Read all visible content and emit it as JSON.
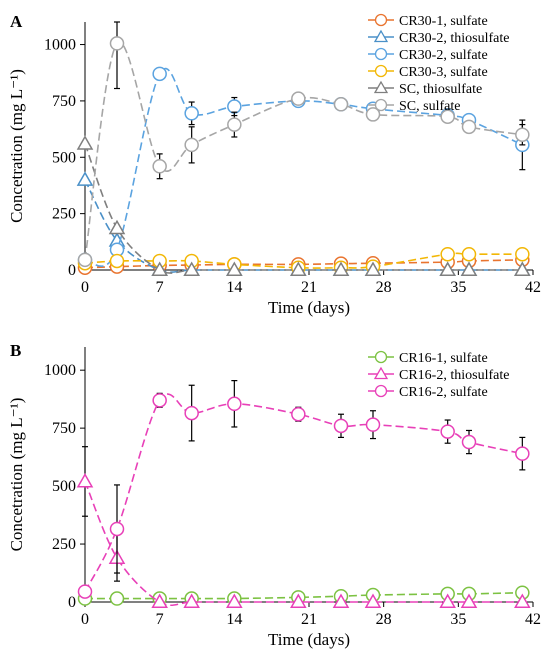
{
  "chart_data": [
    {
      "type": "line",
      "panel_label": "A",
      "xlabel": "Time (days)",
      "ylabel": "Concetration (mg L⁻¹)",
      "xlim": [
        0,
        42
      ],
      "ylim": [
        0,
        1100
      ],
      "xticks": [
        0,
        7,
        14,
        21,
        28,
        35,
        42
      ],
      "yticks": [
        0,
        250,
        500,
        750,
        1000
      ],
      "grid": false,
      "legend_position": "top-right",
      "series": [
        {
          "name": "CR30-1, sulfate",
          "color": "#E9742F",
          "marker": "circle",
          "x": [
            0,
            3,
            7,
            10,
            14,
            20,
            24,
            27,
            34,
            36,
            41
          ],
          "y": [
            10,
            15,
            20,
            22,
            25,
            25,
            28,
            30,
            35,
            40,
            45
          ],
          "err": [
            0,
            0,
            0,
            0,
            0,
            0,
            0,
            0,
            0,
            0,
            0
          ]
        },
        {
          "name": "CR30-2, thiosulfate",
          "color": "#4A90C8",
          "marker": "triangle",
          "x": [
            0,
            3,
            7,
            10,
            14,
            20,
            24,
            27,
            34,
            36,
            41
          ],
          "y": [
            400,
            130,
            0,
            0,
            0,
            0,
            0,
            0,
            0,
            0,
            0
          ],
          "err": [
            0,
            0,
            0,
            0,
            0,
            0,
            0,
            0,
            0,
            0,
            0
          ]
        },
        {
          "name": "CR30-2, sulfate",
          "color": "#5BA3E0",
          "marker": "circle",
          "x": [
            0,
            3,
            7,
            10,
            14,
            20,
            24,
            27,
            34,
            36,
            41
          ],
          "y": [
            45,
            90,
            870,
            695,
            725,
            750,
            735,
            715,
            685,
            665,
            555
          ],
          "err": [
            0,
            0,
            0,
            50,
            40,
            25,
            0,
            25,
            30,
            25,
            110
          ]
        },
        {
          "name": "CR30-3, sulfate",
          "color": "#F2B705",
          "marker": "circle",
          "x": [
            0,
            3,
            7,
            10,
            14,
            20,
            24,
            27,
            34,
            36,
            41
          ],
          "y": [
            30,
            40,
            40,
            40,
            25,
            10,
            10,
            15,
            70,
            70,
            70
          ],
          "err": [
            0,
            0,
            0,
            0,
            0,
            0,
            0,
            0,
            0,
            0,
            0
          ]
        },
        {
          "name": "SC, thiosulfate",
          "color": "#7F7F7F",
          "marker": "triangle",
          "x": [
            0,
            3,
            7,
            10,
            14,
            20,
            24,
            27,
            34,
            36,
            41
          ],
          "y": [
            560,
            185,
            0,
            0,
            0,
            0,
            0,
            0,
            0,
            0,
            0
          ],
          "err": [
            0,
            0,
            0,
            0,
            0,
            0,
            0,
            0,
            0,
            0,
            0
          ]
        },
        {
          "name": "SC, sulfate",
          "color": "#A6A6A6",
          "marker": "circle",
          "x": [
            0,
            3,
            7,
            10,
            14,
            20,
            24,
            27,
            34,
            36,
            41
          ],
          "y": [
            45,
            1005,
            460,
            555,
            645,
            760,
            735,
            690,
            680,
            635,
            600
          ],
          "err": [
            0,
            200,
            55,
            80,
            55,
            20,
            0,
            0,
            25,
            0,
            45
          ]
        }
      ]
    },
    {
      "type": "line",
      "panel_label": "B",
      "xlabel": "Time (days)",
      "ylabel": "Concetration (mg L⁻¹)",
      "xlim": [
        0,
        42
      ],
      "ylim": [
        0,
        1100
      ],
      "xticks": [
        0,
        7,
        14,
        21,
        28,
        35,
        42
      ],
      "yticks": [
        0,
        250,
        500,
        750,
        1000
      ],
      "grid": false,
      "legend_position": "top-right",
      "series": [
        {
          "name": "CR16-1, sulfate",
          "color": "#7CC242",
          "marker": "circle",
          "x": [
            0,
            3,
            7,
            10,
            14,
            20,
            24,
            27,
            34,
            36,
            41
          ],
          "y": [
            15,
            15,
            15,
            15,
            15,
            20,
            25,
            30,
            35,
            35,
            40
          ],
          "err": [
            0,
            0,
            0,
            0,
            0,
            0,
            0,
            0,
            0,
            0,
            0
          ]
        },
        {
          "name": "CR16-2, thiosulfate",
          "color": "#E840B8",
          "marker": "triangle",
          "x": [
            0,
            3,
            7,
            10,
            14,
            20,
            24,
            27,
            34,
            36,
            41
          ],
          "y": [
            520,
            190,
            0,
            0,
            0,
            0,
            0,
            0,
            0,
            0,
            0
          ],
          "err": [
            150,
            100,
            0,
            0,
            0,
            0,
            0,
            0,
            0,
            0,
            0
          ]
        },
        {
          "name": "CR16-2, sulfate",
          "color": "#E840B8",
          "marker": "circle",
          "x": [
            0,
            3,
            7,
            10,
            14,
            20,
            24,
            27,
            34,
            36,
            41
          ],
          "y": [
            45,
            315,
            870,
            815,
            855,
            810,
            760,
            765,
            735,
            690,
            640
          ],
          "err": [
            0,
            190,
            30,
            120,
            100,
            30,
            50,
            60,
            50,
            50,
            70
          ]
        }
      ]
    }
  ]
}
